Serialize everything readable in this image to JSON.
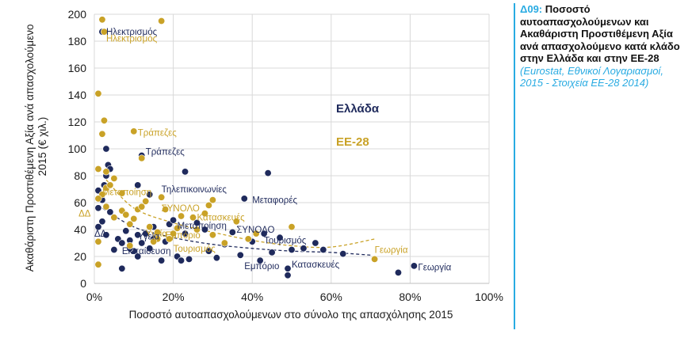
{
  "panel": {
    "code": "Δ09:",
    "title": "Ποσοστό αυτοαπασχολούμενων και Ακαθάριστη Προστιθέμενη Αξία ανά απασχολούμενο κατά κλάδο στην Ελλάδα και στην ΕΕ-28",
    "source": "(Eurostat, Εθνικοί Λογαριασμοί, 2015 - Στοιχεία ΕΕ-28 2014)"
  },
  "chart_data": {
    "type": "scatter",
    "xlabel": "Ποσοστό αυτοαπασχολούμενων στο σύνολο της απασχόλησης 2015",
    "ylabel": "Ακαθάριστη Προστιθέμενη Αξία ανά απασχολούμενο 2015 (€ χιλ.)",
    "xlim": [
      0,
      100
    ],
    "ylim": [
      0,
      200
    ],
    "x_ticks": [
      "0%",
      "20%",
      "40%",
      "60%",
      "80%",
      "100%"
    ],
    "y_ticks": [
      "0",
      "20",
      "40",
      "60",
      "80",
      "100",
      "120",
      "140",
      "160",
      "180",
      "200"
    ],
    "grid": true,
    "legend": "right",
    "series": [
      {
        "name": "Ελλάδα",
        "color": "#1f2a5c",
        "points": [
          [
            2,
            187
          ],
          [
            3,
            100
          ],
          [
            3.5,
            88
          ],
          [
            4,
            85
          ],
          [
            3,
            80
          ],
          [
            2.5,
            73
          ],
          [
            1,
            69
          ],
          [
            2,
            62
          ],
          [
            1,
            56
          ],
          [
            4,
            53
          ],
          [
            2,
            46
          ],
          [
            1,
            42
          ],
          [
            3,
            36
          ],
          [
            6,
            33
          ],
          [
            5,
            25
          ],
          [
            7,
            30
          ],
          [
            8,
            39
          ],
          [
            9,
            32
          ],
          [
            11,
            36
          ],
          [
            12,
            30
          ],
          [
            10,
            24
          ],
          [
            11,
            20
          ],
          [
            7,
            11
          ],
          [
            14,
            26
          ],
          [
            13,
            37
          ],
          [
            15,
            33
          ],
          [
            17,
            17
          ],
          [
            18,
            31
          ],
          [
            19,
            44
          ],
          [
            20,
            47
          ],
          [
            21,
            20
          ],
          [
            22,
            17
          ],
          [
            24,
            18
          ],
          [
            23,
            37
          ],
          [
            12,
            95
          ],
          [
            23,
            83
          ],
          [
            11,
            73
          ],
          [
            14,
            66
          ],
          [
            26,
            45
          ],
          [
            28,
            40
          ],
          [
            29,
            24
          ],
          [
            31,
            19
          ],
          [
            33,
            29
          ],
          [
            35,
            38
          ],
          [
            38,
            63
          ],
          [
            37,
            21
          ],
          [
            40,
            31
          ],
          [
            42,
            17
          ],
          [
            43,
            37
          ],
          [
            44,
            82
          ],
          [
            45,
            23
          ],
          [
            47,
            34
          ],
          [
            49,
            11
          ],
          [
            49,
            6
          ],
          [
            50,
            25
          ],
          [
            53,
            26
          ],
          [
            56,
            30
          ],
          [
            58,
            25
          ],
          [
            63,
            22
          ],
          [
            77,
            8
          ],
          [
            81,
            13
          ],
          [
            15,
            42
          ],
          [
            9,
            26
          ]
        ]
      },
      {
        "name": "ΕΕ-28",
        "color": "#c9a227",
        "points": [
          [
            2,
            196
          ],
          [
            17,
            195
          ],
          [
            2.5,
            187
          ],
          [
            1,
            141
          ],
          [
            2.5,
            121
          ],
          [
            2,
            111
          ],
          [
            10,
            113
          ],
          [
            12,
            93
          ],
          [
            1,
            85
          ],
          [
            3,
            83
          ],
          [
            5,
            78
          ],
          [
            2,
            66
          ],
          [
            1,
            63
          ],
          [
            3,
            71
          ],
          [
            4,
            73
          ],
          [
            7,
            67
          ],
          [
            3,
            57
          ],
          [
            7,
            54
          ],
          [
            8,
            51
          ],
          [
            9,
            44
          ],
          [
            10,
            48
          ],
          [
            11,
            55
          ],
          [
            12,
            57
          ],
          [
            13,
            61
          ],
          [
            14,
            42
          ],
          [
            16,
            38
          ],
          [
            17,
            64
          ],
          [
            18,
            55
          ],
          [
            19,
            33
          ],
          [
            20,
            37
          ],
          [
            21,
            41
          ],
          [
            22,
            50
          ],
          [
            16,
            33
          ],
          [
            15,
            31
          ],
          [
            25,
            49
          ],
          [
            26,
            40
          ],
          [
            28,
            52
          ],
          [
            29,
            58
          ],
          [
            30,
            62
          ],
          [
            30,
            36
          ],
          [
            33,
            30
          ],
          [
            36,
            46
          ],
          [
            39,
            33
          ],
          [
            41,
            37
          ],
          [
            50,
            42
          ],
          [
            71,
            18
          ],
          [
            5,
            49
          ],
          [
            9,
            28
          ],
          [
            1,
            14
          ],
          [
            1,
            31
          ]
        ]
      }
    ],
    "trendlines": [
      {
        "series": "Ελλάδα",
        "style": "dashed",
        "points": [
          [
            1,
            58
          ],
          [
            10,
            42
          ],
          [
            20,
            34
          ],
          [
            30,
            29
          ],
          [
            40,
            26
          ],
          [
            50,
            24
          ],
          [
            60,
            23
          ],
          [
            70,
            21
          ]
        ]
      },
      {
        "series": "ΕΕ-28",
        "style": "dashed",
        "points": [
          [
            3,
            77
          ],
          [
            10,
            56
          ],
          [
            20,
            45
          ],
          [
            30,
            38
          ],
          [
            40,
            32
          ],
          [
            50,
            28
          ],
          [
            60,
            27
          ],
          [
            71,
            33
          ]
        ]
      }
    ],
    "annotations": [
      {
        "text": "Ηλεκτρισμός",
        "series": "Ελλάδα",
        "x": 3,
        "y": 187
      },
      {
        "text": "Ηλεκτρισμός",
        "series": "ΕΕ-28",
        "x": 3,
        "y": 182
      },
      {
        "text": "Τράπεζες",
        "series": "ΕΕ-28",
        "x": 11,
        "y": 112
      },
      {
        "text": "Τράπεζες",
        "series": "Ελλάδα",
        "x": 13,
        "y": 98
      },
      {
        "text": "Τηλεπικοινωνίες",
        "series": "Ελλάδα",
        "x": 17,
        "y": 70
      },
      {
        "text": "Μεταποίηση",
        "series": "ΕΕ-28",
        "x": 2,
        "y": 68
      },
      {
        "text": "Μεταφορές",
        "series": "Ελλάδα",
        "x": 40,
        "y": 62
      },
      {
        "text": "ΣΥΝΟΛΟ",
        "series": "ΕΕ-28",
        "x": 17,
        "y": 56
      },
      {
        "text": "ΔΔ",
        "series": "ΕΕ-28",
        "x": -4,
        "y": 52
      },
      {
        "text": "Κατασκευές",
        "series": "ΕΕ-28",
        "x": 26,
        "y": 49
      },
      {
        "text": "Μεταποίηση",
        "series": "Ελλάδα",
        "x": 21,
        "y": 43
      },
      {
        "text": "ΣΥΝΟΛΟ",
        "series": "Ελλάδα",
        "x": 36,
        "y": 40
      },
      {
        "text": "Υγεία",
        "series": "ΕΕ-28",
        "x": 13,
        "y": 37
      },
      {
        "text": "ΔΔ",
        "series": "Ελλάδα",
        "x": 0,
        "y": 37
      },
      {
        "text": "Υγεία",
        "series": "Ελλάδα",
        "x": 11,
        "y": 35
      },
      {
        "text": "Εμπόριο",
        "series": "ΕΕ-28",
        "x": 18,
        "y": 36
      },
      {
        "text": "Τουρισμός",
        "series": "Ελλάδα",
        "x": 43,
        "y": 32
      },
      {
        "text": "Τουρισμός",
        "series": "ΕΕ-28",
        "x": 20,
        "y": 26
      },
      {
        "text": "Γεωργία",
        "series": "ΕΕ-28",
        "x": 71,
        "y": 25
      },
      {
        "text": "Εκπαίδευση",
        "series": "Ελλάδα",
        "x": 7,
        "y": 24
      },
      {
        "text": "Εμπόριο",
        "series": "Ελλάδα",
        "x": 38,
        "y": 13
      },
      {
        "text": "Κατασκευές",
        "series": "Ελλάδα",
        "x": 50,
        "y": 14
      },
      {
        "text": "Γεωργία",
        "series": "Ελλάδα",
        "x": 82,
        "y": 12
      }
    ]
  }
}
